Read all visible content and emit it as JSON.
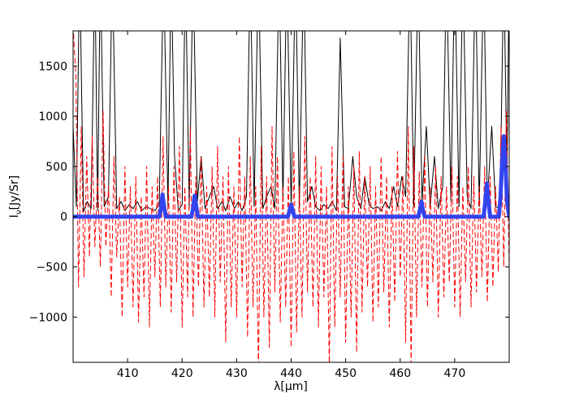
{
  "chart_data": {
    "type": "line",
    "title": "",
    "xlabel": "λ[μm]",
    "ylabel": "Iν[Jy/Sr]",
    "ylabel_main": "I",
    "ylabel_sub": "ν",
    "ylabel_rest": "[Jy/Sr]",
    "xlim": [
      400,
      480
    ],
    "ylim": [
      -1450,
      1850
    ],
    "xticks": [
      410,
      420,
      430,
      440,
      450,
      460,
      470
    ],
    "yticks": [
      -1000,
      -500,
      0,
      500,
      1000,
      1500
    ],
    "ytick_labels": [
      "−1000",
      "−500",
      "0",
      "500",
      "1000",
      "1500"
    ],
    "grid": false,
    "legend": "none",
    "series": [
      {
        "color": "#000000",
        "style": "solid",
        "x": [
          400.0,
          400.6,
          401.2,
          401.9,
          402.6,
          403.3,
          404.0,
          404.5,
          405.0,
          405.7,
          406.5,
          407.2,
          408.0,
          408.8,
          409.5,
          410.3,
          411.0,
          411.8,
          412.6,
          413.4,
          414.2,
          415.0,
          415.8,
          416.6,
          417.4,
          418.0,
          418.6,
          419.3,
          420.0,
          420.6,
          421.3,
          422.0,
          422.8,
          423.5,
          424.2,
          425.0,
          425.8,
          426.5,
          427.3,
          428.0,
          428.8,
          429.6,
          430.3,
          431.0,
          431.8,
          432.5,
          433.2,
          434.0,
          434.8,
          435.5,
          436.3,
          437.0,
          437.8,
          438.5,
          439.2,
          440.0,
          440.8,
          441.5,
          442.3,
          443.0,
          443.8,
          444.5,
          445.3,
          446.0,
          446.8,
          447.5,
          448.3,
          449.0,
          449.8,
          450.5,
          451.3,
          452.0,
          452.8,
          453.5,
          454.3,
          455.0,
          455.8,
          456.5,
          457.3,
          458.0,
          458.8,
          459.5,
          460.3,
          461.0,
          461.8,
          462.5,
          463.3,
          464.0,
          464.8,
          465.5,
          466.3,
          467.0,
          467.8,
          468.5,
          469.3,
          470.0,
          470.8,
          471.5,
          472.3,
          473.0,
          473.8,
          474.5,
          475.3,
          476.0,
          476.8,
          477.5,
          478.3,
          479.0,
          479.6,
          480.0
        ],
        "y": [
          900,
          100,
          2500,
          50,
          150,
          80,
          2500,
          60,
          2500,
          100,
          200,
          2500,
          80,
          150,
          60,
          120,
          80,
          150,
          60,
          100,
          80,
          60,
          120,
          2500,
          100,
          2500,
          600,
          60,
          120,
          2500,
          80,
          2500,
          150,
          600,
          80,
          200,
          300,
          80,
          150,
          60,
          200,
          80,
          150,
          60,
          200,
          2500,
          100,
          2500,
          80,
          200,
          300,
          80,
          2500,
          150,
          2500,
          100,
          2500,
          80,
          2500,
          150,
          300,
          100,
          60,
          120,
          80,
          150,
          60,
          1780,
          100,
          80,
          600,
          200,
          80,
          400,
          120,
          80,
          100,
          60,
          150,
          80,
          300,
          100,
          400,
          200,
          2500,
          100,
          2500,
          150,
          900,
          100,
          600,
          80,
          300,
          2500,
          150,
          2500,
          100,
          2500,
          200,
          80,
          2500,
          100,
          2500,
          150,
          900,
          100,
          80,
          2500,
          400,
          2500
        ]
      },
      {
        "color": "#ff0000",
        "style": "dashed",
        "x": [
          400.0,
          400.5,
          401.0,
          401.5,
          402.0,
          402.5,
          403.0,
          403.5,
          404.0,
          404.5,
          405.0,
          405.5,
          406.0,
          406.5,
          407.0,
          407.5,
          408.0,
          408.5,
          409.0,
          409.5,
          410.0,
          410.5,
          411.0,
          411.5,
          412.0,
          412.5,
          413.0,
          413.5,
          414.0,
          414.5,
          415.0,
          415.5,
          416.0,
          416.5,
          417.0,
          417.5,
          418.0,
          418.5,
          419.0,
          419.5,
          420.0,
          420.5,
          421.0,
          421.5,
          422.0,
          422.5,
          423.0,
          423.5,
          424.0,
          424.5,
          425.0,
          425.5,
          426.0,
          426.5,
          427.0,
          427.5,
          428.0,
          428.5,
          429.0,
          429.5,
          430.0,
          430.5,
          431.0,
          431.5,
          432.0,
          432.5,
          433.0,
          433.5,
          434.0,
          434.5,
          435.0,
          435.5,
          436.0,
          436.5,
          437.0,
          437.5,
          438.0,
          438.5,
          439.0,
          439.5,
          440.0,
          440.5,
          441.0,
          441.5,
          442.0,
          442.5,
          443.0,
          443.5,
          444.0,
          444.5,
          445.0,
          445.5,
          446.0,
          446.5,
          447.0,
          447.5,
          448.0,
          448.5,
          449.0,
          449.5,
          450.0,
          450.5,
          451.0,
          451.5,
          452.0,
          452.5,
          453.0,
          453.5,
          454.0,
          454.5,
          455.0,
          455.5,
          456.0,
          456.5,
          457.0,
          457.5,
          458.0,
          458.5,
          459.0,
          459.5,
          460.0,
          460.5,
          461.0,
          461.5,
          462.0,
          462.5,
          463.0,
          463.5,
          464.0,
          464.5,
          465.0,
          465.5,
          466.0,
          466.5,
          467.0,
          467.5,
          468.0,
          468.5,
          469.0,
          469.5,
          470.0,
          470.5,
          471.0,
          471.5,
          472.0,
          472.5,
          473.0,
          473.5,
          474.0,
          474.5,
          475.0,
          475.5,
          476.0,
          476.5,
          477.0,
          477.5,
          478.0,
          478.5,
          479.0,
          479.5,
          480.0
        ],
        "y": [
          1900,
          1400,
          -700,
          900,
          -600,
          600,
          -400,
          800,
          -300,
          400,
          -500,
          1050,
          -300,
          300,
          -800,
          600,
          -400,
          200,
          -1000,
          500,
          -700,
          300,
          -900,
          400,
          -1050,
          200,
          -800,
          500,
          -1100,
          300,
          -600,
          400,
          -900,
          800,
          -700,
          300,
          -950,
          500,
          -650,
          700,
          -1100,
          300,
          -800,
          900,
          -1000,
          400,
          -700,
          600,
          -900,
          300,
          -800,
          500,
          -1000,
          700,
          -650,
          400,
          -1250,
          500,
          -900,
          300,
          -1000,
          800,
          -700,
          400,
          -1200,
          600,
          -900,
          300,
          -1550,
          700,
          -1000,
          400,
          -1300,
          900,
          -750,
          600,
          -1050,
          300,
          -900,
          400,
          -1300,
          650,
          -1150,
          300,
          -1000,
          800,
          -750,
          400,
          -900,
          600,
          -1100,
          500,
          -800,
          300,
          -1500,
          700,
          -1100,
          400,
          -800,
          600,
          -1250,
          300,
          -1000,
          500,
          -1350,
          650,
          -950,
          400,
          -700,
          500,
          -1050,
          300,
          -900,
          600,
          -750,
          400,
          -1100,
          300,
          -850,
          650,
          -600,
          400,
          -1250,
          900,
          -1500,
          700,
          -1000,
          450,
          -700,
          600,
          -900,
          300,
          -650,
          500,
          -1000,
          400,
          -800,
          300,
          -650,
          500,
          -900,
          400,
          -1000,
          300,
          -650,
          500,
          -900,
          400,
          -750,
          300,
          -600,
          500,
          -850,
          400,
          -700,
          300,
          -550,
          900,
          -500,
          1050,
          -500
        ]
      },
      {
        "color": "#3344ee",
        "style": "solid-thick",
        "x": [
          400.0,
          415.8,
          416.1,
          416.4,
          416.7,
          417.0,
          421.7,
          422.0,
          422.3,
          422.6,
          422.9,
          439.4,
          439.7,
          440.0,
          440.3,
          440.6,
          463.3,
          463.6,
          463.9,
          464.2,
          464.5,
          475.3,
          475.6,
          475.9,
          476.2,
          476.5,
          478.1,
          478.4,
          478.7,
          479.0,
          479.3,
          479.6,
          480.0
        ],
        "y": [
          0,
          0,
          80,
          220,
          100,
          0,
          0,
          80,
          210,
          100,
          0,
          0,
          60,
          120,
          60,
          0,
          0,
          60,
          150,
          60,
          0,
          0,
          150,
          330,
          150,
          0,
          0,
          200,
          550,
          800,
          550,
          150,
          0
        ]
      }
    ]
  }
}
